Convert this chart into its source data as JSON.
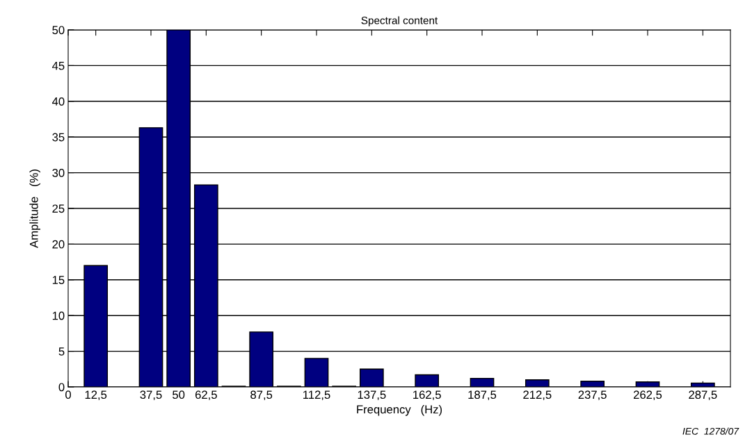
{
  "chart_data": {
    "type": "bar",
    "title": "Spectral content",
    "xlabel": "Frequency   (Hz)",
    "ylabel": "Amplitude   (%)",
    "x": [
      12.5,
      37.5,
      50,
      62.5,
      75,
      87.5,
      100,
      112.5,
      125,
      137.5,
      162.5,
      187.5,
      212.5,
      237.5,
      262.5,
      287.5
    ],
    "values": [
      17,
      36.3,
      50,
      28.3,
      0.1,
      7.7,
      0.1,
      4.0,
      0.1,
      2.5,
      1.7,
      1.2,
      1.0,
      0.8,
      0.7,
      0.55
    ],
    "color": "#000080",
    "xlim": [
      0,
      300
    ],
    "xticks": [
      0,
      {
        "value": 12.5,
        "label": "12,5"
      },
      {
        "value": 37.5,
        "label": "37,5"
      },
      50,
      {
        "value": 62.5,
        "label": "62,5"
      },
      {
        "value": 87.5,
        "label": "87,5"
      },
      {
        "value": 112.5,
        "label": "112,5"
      },
      {
        "value": 137.5,
        "label": "137,5"
      },
      {
        "value": 162.5,
        "label": "162,5"
      },
      {
        "value": 187.5,
        "label": "187,5"
      },
      {
        "value": 212.5,
        "label": "212,5"
      },
      {
        "value": 237.5,
        "label": "237,5"
      },
      {
        "value": 262.5,
        "label": "262,5"
      },
      {
        "value": 287.5,
        "label": "287,5"
      }
    ],
    "ylim": [
      0,
      50
    ],
    "yticks": [
      0,
      5,
      10,
      15,
      20,
      25,
      30,
      35,
      40,
      45,
      50
    ],
    "grid": "y",
    "annotations": [
      "IEC  1278/07"
    ]
  }
}
